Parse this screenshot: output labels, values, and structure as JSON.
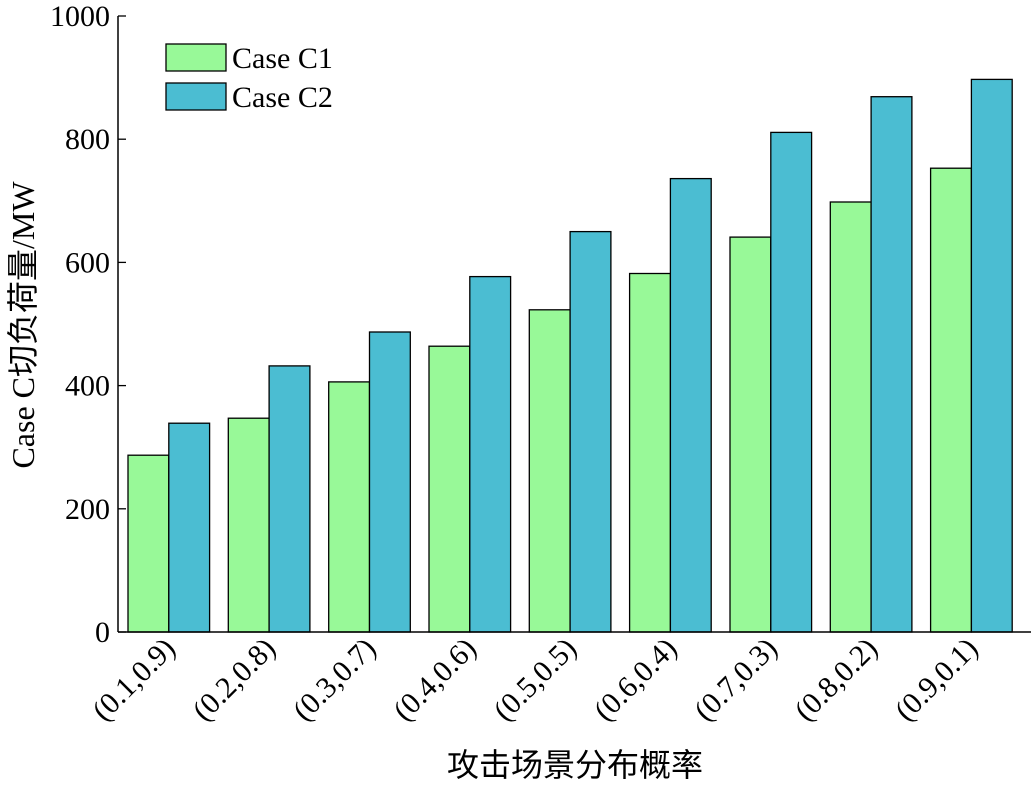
{
  "chart_data": {
    "type": "bar",
    "title": "",
    "xlabel": "攻击场景分布概率",
    "ylabel": "Case C切负荷量/MW",
    "ylim": [
      0,
      1000
    ],
    "yticks": [
      0,
      200,
      400,
      600,
      800,
      1000
    ],
    "grid": false,
    "legend_position": "top-left",
    "categories": [
      "(0.1,0.9)",
      "(0.2,0.8)",
      "(0.3,0.7)",
      "(0.4,0.6)",
      "(0.5,0.5)",
      "(0.6,0.4)",
      "(0.7,0.3)",
      "(0.8,0.2)",
      "(0.9,0.1)"
    ],
    "series": [
      {
        "name": "Case C1",
        "color": "#98f998",
        "values": [
          287,
          347,
          406,
          464,
          523,
          582,
          641,
          698,
          753
        ]
      },
      {
        "name": "Case C2",
        "color": "#4bbdd2",
        "values": [
          339,
          432,
          487,
          577,
          650,
          736,
          811,
          869,
          897
        ]
      }
    ]
  }
}
